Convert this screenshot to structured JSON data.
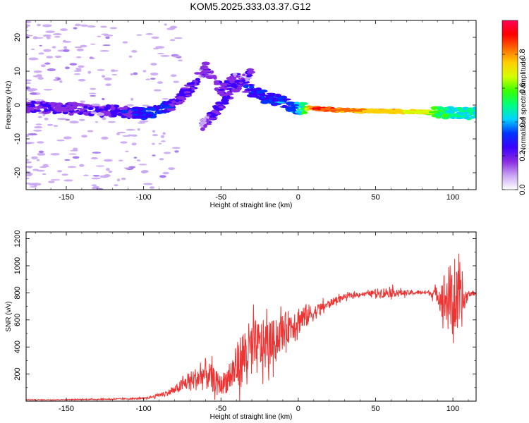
{
  "chart_data": [
    {
      "type": "heatmap",
      "title": "KOM5.2025.333.03.37.G12",
      "xlabel": "Height of straight line (km)",
      "ylabel": "Frequency (Hz)",
      "xlim": [
        -176,
        115
      ],
      "ylim": [
        -25,
        25
      ],
      "x_ticks": [
        -150,
        -100,
        -50,
        0,
        50,
        100
      ],
      "y_ticks": [
        -20,
        -10,
        0,
        10,
        20
      ],
      "colorbar": {
        "label": "Normalized spectral amplitude",
        "range": [
          0,
          1
        ],
        "ticks": [
          "0.0",
          "0.2",
          "0.4",
          "0.6",
          "0.8"
        ],
        "tick_values": [
          0,
          0.2,
          0.4,
          0.6,
          0.8
        ],
        "colors": [
          "#ffffff",
          "#c9a6f3",
          "#8a2be2",
          "#3b00ff",
          "#0033ff",
          "#00d4ff",
          "#00ff7f",
          "#39ff00",
          "#d4ff00",
          "#ffd000",
          "#ff6a00",
          "#ff0000",
          "#ff0055"
        ]
      },
      "main_trace": {
        "x": [
          -176,
          -150,
          -130,
          -115,
          -100,
          -90,
          -80,
          -75,
          -70,
          -65,
          -60,
          -55,
          -50,
          -45,
          -40,
          -35,
          -30,
          -25,
          -20,
          -15,
          -10,
          -5,
          0,
          10,
          20,
          30,
          40,
          50,
          60,
          70,
          80,
          90,
          100,
          115
        ],
        "y": [
          -0.5,
          -1.0,
          -1.5,
          -2.0,
          -2.5,
          -1.5,
          0.5,
          2.5,
          5.0,
          8.0,
          11.0,
          8.0,
          4.0,
          6.0,
          8.0,
          6.0,
          4.0,
          3.0,
          2.0,
          1.5,
          1.0,
          -0.5,
          -1.0,
          -1.0,
          -1.3,
          -1.5,
          -1.7,
          -1.8,
          -1.8,
          -2.0,
          -2.0,
          -2.2,
          -2.3,
          -2.5
        ],
        "amplitude": [
          0.2,
          0.2,
          0.18,
          0.22,
          0.3,
          0.3,
          0.25,
          0.2,
          0.22,
          0.2,
          0.15,
          0.15,
          0.2,
          0.2,
          0.18,
          0.22,
          0.25,
          0.3,
          0.3,
          0.3,
          0.32,
          0.3,
          0.4,
          0.9,
          0.85,
          0.8,
          0.8,
          0.75,
          0.75,
          0.7,
          0.7,
          0.55,
          0.45,
          0.45
        ]
      },
      "secondary_trace": {
        "x": [
          -62,
          -55,
          -50,
          -45,
          -40,
          -35,
          -30
        ],
        "y": [
          -6.0,
          -3.0,
          0.0,
          3.0,
          5.0,
          8.0,
          10.0
        ],
        "amplitude": [
          0.15,
          0.18,
          0.2,
          0.22,
          0.2,
          0.18,
          0.15
        ]
      }
    },
    {
      "type": "line",
      "xlabel": "Height of straight line (km)",
      "ylabel": "SNR (v/v)",
      "xlim": [
        -176,
        115
      ],
      "ylim": [
        0,
        1250
      ],
      "x_ticks": [
        -150,
        -100,
        -50,
        0,
        50,
        100
      ],
      "y_ticks": [
        200,
        400,
        600,
        800,
        1000,
        1200
      ],
      "color": "#ee3333",
      "series": [
        {
          "name": "SNR",
          "x": [
            -176,
            -160,
            -140,
            -120,
            -100,
            -95,
            -90,
            -85,
            -80,
            -75,
            -70,
            -65,
            -60,
            -55,
            -50,
            -45,
            -40,
            -35,
            -30,
            -25,
            -20,
            -15,
            -10,
            -5,
            0,
            5,
            10,
            15,
            20,
            25,
            30,
            35,
            40,
            45,
            50,
            55,
            60,
            65,
            70,
            75,
            80,
            85,
            90,
            95,
            100,
            105,
            110,
            115
          ],
          "y": [
            10,
            10,
            12,
            15,
            20,
            30,
            45,
            60,
            80,
            120,
            150,
            170,
            200,
            160,
            120,
            170,
            250,
            340,
            380,
            400,
            420,
            450,
            520,
            560,
            600,
            630,
            650,
            690,
            720,
            750,
            770,
            780,
            790,
            795,
            800,
            800,
            805,
            800,
            800,
            800,
            805,
            800,
            790,
            760,
            740,
            700,
            790,
            800
          ],
          "noise": [
            3,
            3,
            4,
            5,
            6,
            10,
            15,
            20,
            30,
            50,
            70,
            90,
            120,
            90,
            70,
            110,
            170,
            220,
            220,
            200,
            180,
            150,
            130,
            120,
            110,
            90,
            60,
            40,
            30,
            25,
            20,
            18,
            16,
            15,
            30,
            40,
            35,
            25,
            20,
            15,
            15,
            20,
            60,
            220,
            300,
            200,
            20,
            15
          ]
        }
      ]
    }
  ]
}
